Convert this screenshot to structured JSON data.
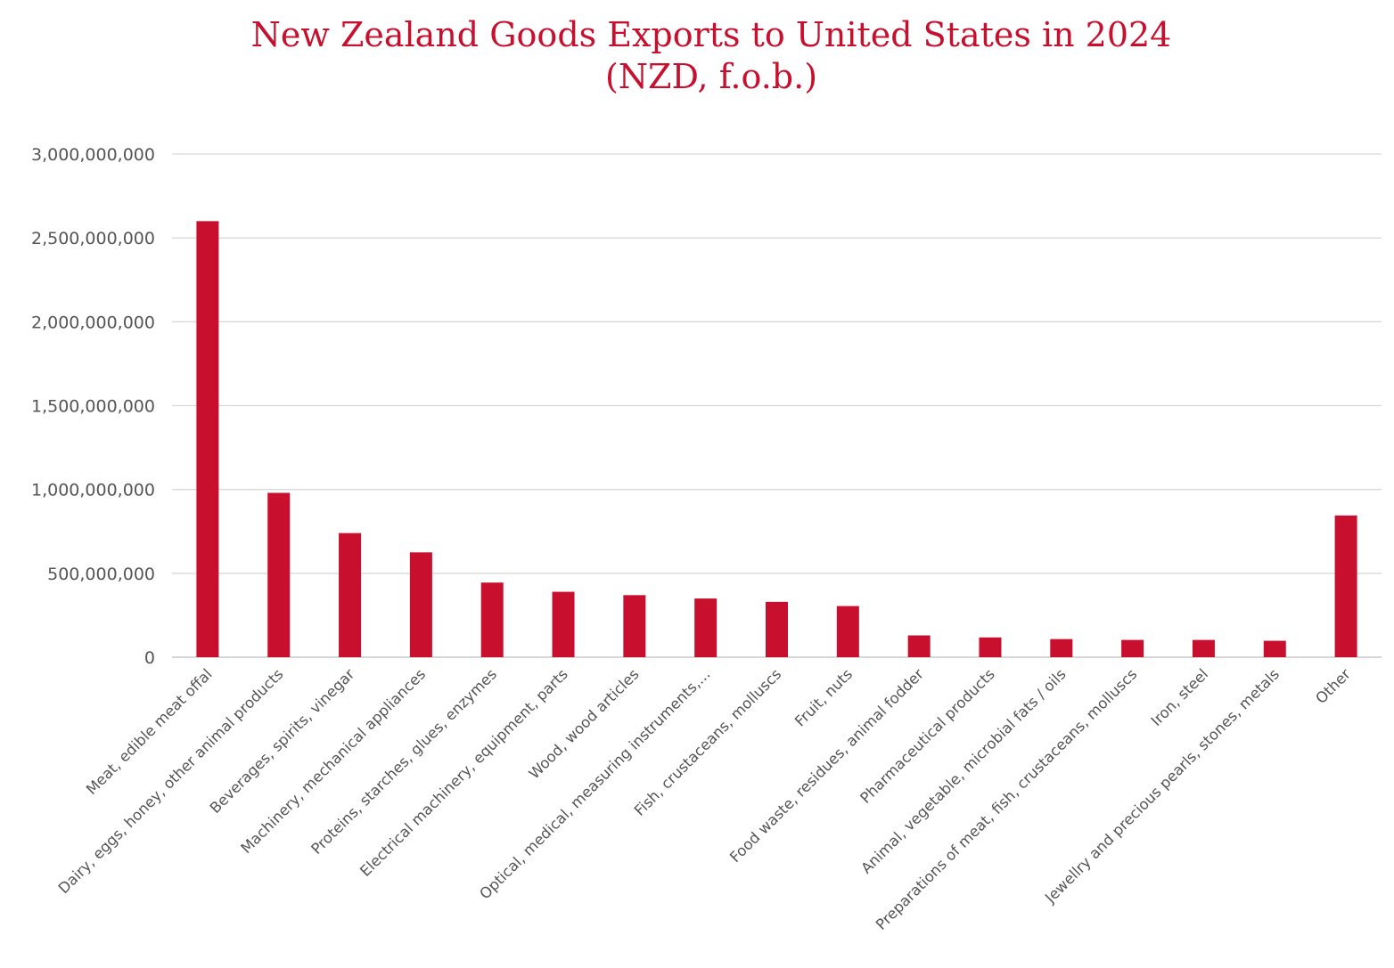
{
  "chart_data": {
    "type": "bar",
    "title": "New Zealand Goods Exports to United States in 2024",
    "subtitle": "(NZD, f.o.b.)",
    "xlabel": "",
    "ylabel": "",
    "ylim": [
      0,
      3000000000
    ],
    "yticks": [
      0,
      500000000,
      1000000000,
      1500000000,
      2000000000,
      2500000000,
      3000000000
    ],
    "ytick_labels": [
      "0",
      "500,000,000",
      "1,000,000,000",
      "1,500,000,000",
      "2,000,000,000",
      "2,500,000,000",
      "3,000,000,000"
    ],
    "grid": true,
    "legend": "none",
    "bar_color": "#c8102e",
    "categories": [
      "Meat, edible meat offal",
      "Dairy, eggs, honey, other animal products",
      "Beverages, spirits, vinegar",
      "Machinery, mechanical appliances",
      "Proteins, starches, glues, enzymes",
      "Electrical machinery, equipment, parts",
      "Wood, wood articles",
      "Optical, medical, measuring instruments,...",
      "Fish, crustaceans, molluscs",
      "Fruit, nuts",
      "Food waste, residues, animal fodder",
      "Pharmaceutical products",
      "Animal, vegetable, microbial fats / oils",
      "Preparations of meat, fish, crustaceans, molluscs",
      "Iron, steel",
      "Jewellry and precious pearls, stones, metals",
      "Other"
    ],
    "values": [
      2600000000,
      980000000,
      740000000,
      625000000,
      445000000,
      390000000,
      370000000,
      350000000,
      330000000,
      305000000,
      130000000,
      118000000,
      108000000,
      103000000,
      103000000,
      98000000,
      845000000
    ]
  }
}
